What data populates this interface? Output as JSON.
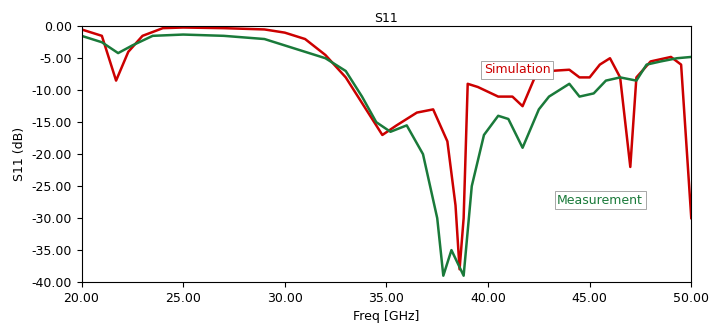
{
  "chart_data": {
    "type": "line",
    "title": "S11",
    "x_label": "Freq [GHz]",
    "y_label": "S11 (dB)",
    "xlim": [
      20,
      50
    ],
    "ylim": [
      -40,
      0
    ],
    "xticks": [
      {
        "value": 20,
        "label": "20.00"
      },
      {
        "value": 25,
        "label": "25.00"
      },
      {
        "value": 30,
        "label": "30.00"
      },
      {
        "value": 35,
        "label": "35.00"
      },
      {
        "value": 40,
        "label": "40.00"
      },
      {
        "value": 45,
        "label": "45.00"
      },
      {
        "value": 50,
        "label": "50.00"
      }
    ],
    "yticks": [
      {
        "value": 0,
        "label": "0.00"
      },
      {
        "value": -5,
        "label": "-5.00"
      },
      {
        "value": -10,
        "label": "-10.00"
      },
      {
        "value": -15,
        "label": "-15.00"
      },
      {
        "value": -20,
        "label": "-20.00"
      },
      {
        "value": -25,
        "label": "-25.00"
      },
      {
        "value": -30,
        "label": "-30.00"
      },
      {
        "value": -35,
        "label": "-35.00"
      },
      {
        "value": -40,
        "label": "-40.00"
      }
    ],
    "grid": false,
    "series": [
      {
        "name": "Simulation",
        "color": "#cc0000",
        "x": [
          20,
          21,
          21.7,
          22.3,
          23,
          24,
          25,
          27,
          29,
          30,
          31,
          32,
          33,
          34,
          34.8,
          35.5,
          36.5,
          37.3,
          38,
          38.4,
          38.6,
          38.8,
          39,
          39.5,
          40.5,
          41.2,
          41.7,
          42.3,
          43,
          44,
          44.5,
          45,
          45.5,
          46,
          46.5,
          47,
          47.3,
          48,
          49,
          49.5,
          50
        ],
        "values": [
          -0.5,
          -1.5,
          -8.5,
          -4,
          -1.5,
          -0.3,
          -0.2,
          -0.3,
          -0.5,
          -1,
          -2,
          -4.5,
          -8,
          -13,
          -17,
          -15.5,
          -13.5,
          -13,
          -18,
          -28,
          -38,
          -30,
          -9,
          -9.5,
          -11,
          -11,
          -12.5,
          -8,
          -7,
          -6.8,
          -8,
          -8,
          -6,
          -5,
          -8,
          -22,
          -8,
          -5.5,
          -4.8,
          -6,
          -30
        ]
      },
      {
        "name": "Measurement",
        "color": "#1a7a3a",
        "x": [
          20,
          21,
          21.8,
          22.5,
          23.5,
          25,
          27,
          29,
          30,
          31,
          32,
          33,
          33.8,
          34.5,
          35.2,
          36,
          36.8,
          37.5,
          37.8,
          38.2,
          38.5,
          38.8,
          39.2,
          39.8,
          40.5,
          41,
          41.7,
          42.5,
          43,
          44,
          44.5,
          45.2,
          45.8,
          46.5,
          47.3,
          47.8,
          48.5,
          49.3,
          50
        ],
        "values": [
          -1.5,
          -2.5,
          -4.2,
          -3,
          -1.5,
          -1.3,
          -1.5,
          -2,
          -3,
          -4,
          -5,
          -7,
          -11,
          -15,
          -16.5,
          -15.5,
          -20,
          -30,
          -39,
          -35,
          -37,
          -39,
          -25,
          -17,
          -14,
          -14.5,
          -19,
          -13,
          -11,
          -9,
          -11,
          -10.5,
          -8.5,
          -8,
          -8.5,
          -6,
          -5.5,
          -5,
          -4.8
        ]
      }
    ]
  }
}
